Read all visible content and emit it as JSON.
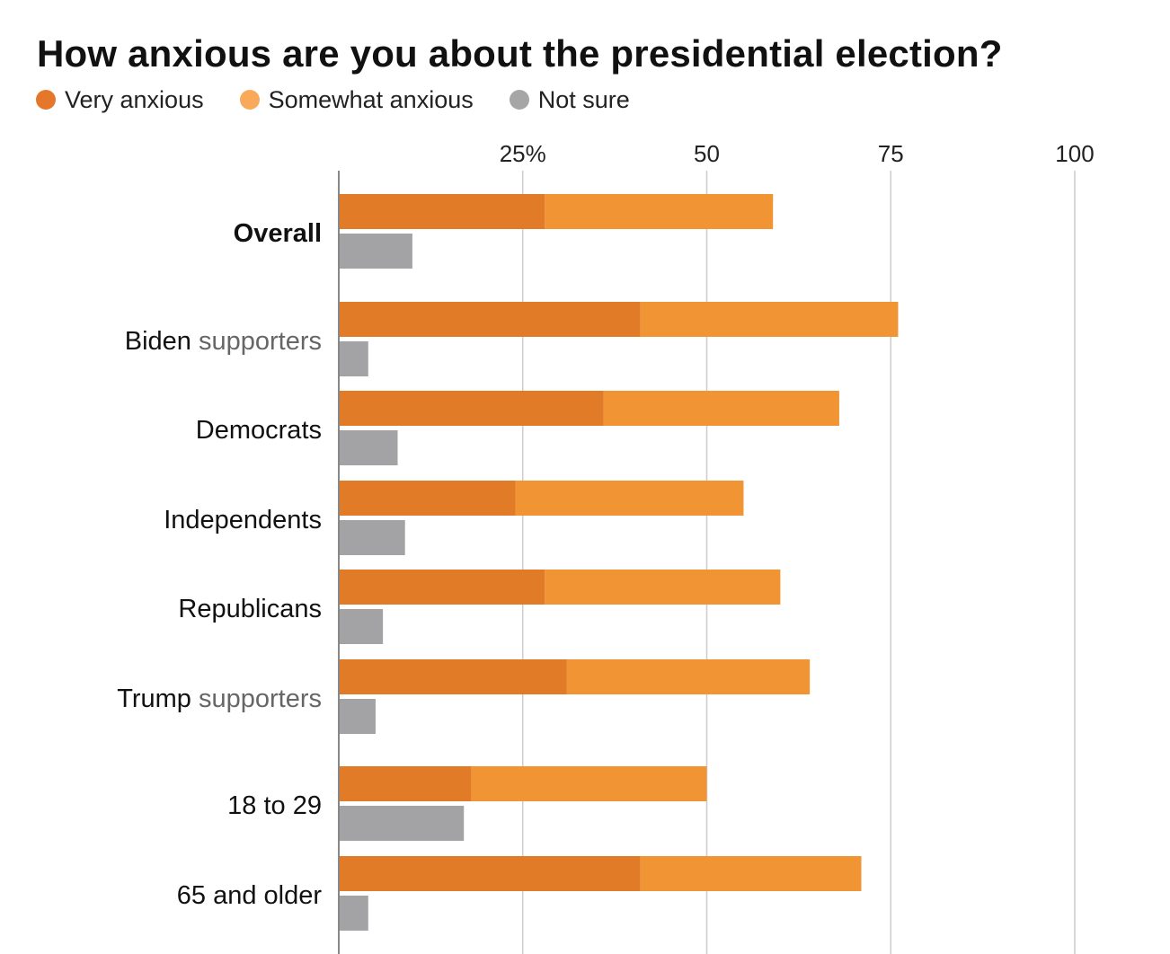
{
  "chart_data": {
    "type": "bar",
    "orientation": "horizontal",
    "stacked": true,
    "title": "How anxious are you about the presidential election?",
    "legend_position": "top-left",
    "xlim": [
      0,
      100
    ],
    "x_ticks": [
      25,
      50,
      75,
      100
    ],
    "x_tick_labels": [
      "25%",
      "50",
      "75",
      "100"
    ],
    "grid": true,
    "categories": [
      {
        "label": "Overall",
        "sub": "",
        "bold": true
      },
      {
        "label": "Biden",
        "sub": " supporters",
        "bold": false
      },
      {
        "label": "Democrats",
        "sub": "",
        "bold": false
      },
      {
        "label": "Independents",
        "sub": "",
        "bold": false
      },
      {
        "label": "Republicans",
        "sub": "",
        "bold": false
      },
      {
        "label": "Trump",
        "sub": " supporters",
        "bold": false
      },
      {
        "label": "18 to 29",
        "sub": "",
        "bold": false
      },
      {
        "label": "65 and older",
        "sub": "",
        "bold": false
      }
    ],
    "series": [
      {
        "name": "Very anxious",
        "color": "#e27b27",
        "values": [
          28,
          41,
          36,
          24,
          28,
          31,
          18,
          41
        ]
      },
      {
        "name": "Somewhat anxious",
        "color": "#f19433",
        "values": [
          31,
          35,
          32,
          31,
          32,
          33,
          32,
          30
        ]
      },
      {
        "name": "Not sure",
        "color": "#a3a3a5",
        "values": [
          10,
          4,
          8,
          9,
          6,
          5,
          17,
          4
        ]
      }
    ]
  },
  "colors": {
    "legend_very": "#e5772b",
    "legend_somewhat": "#f8a95a",
    "legend_not_sure": "#a6a6a6",
    "gridline": "#cccccc",
    "axis": "#888888"
  }
}
